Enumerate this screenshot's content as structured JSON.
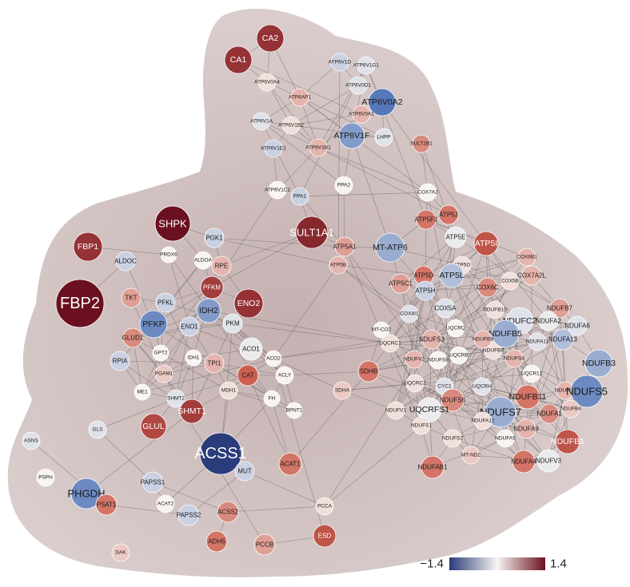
{
  "colors": {
    "background_blob": "#d9cccc",
    "edge": "#555555",
    "scale_low": "#2a3c7a",
    "scale_mid": "#f7f4f2",
    "scale_high": "#6b1020"
  },
  "color_scale": {
    "min_label": "−1.4",
    "max_label": "1.4",
    "min": -1.4,
    "max": 1.4
  },
  "nodes": [
    {
      "id": "CA2",
      "v": 1.1
    },
    {
      "id": "CA1",
      "v": 1.1
    },
    {
      "id": "ATP6V1D",
      "v": -0.2
    },
    {
      "id": "ATP6V1G1",
      "v": -0.1
    },
    {
      "id": "ATP6V0A4",
      "v": 0.1
    },
    {
      "id": "ATP6V0D1",
      "v": -0.1
    },
    {
      "id": "ATP6V0A2",
      "v": -0.7
    },
    {
      "id": "ATP6AP1",
      "v": 0.3
    },
    {
      "id": "ATP6V0A1",
      "v": 0.3
    },
    {
      "id": "ATP6V1A",
      "v": -0.1
    },
    {
      "id": "ATP6V1B2",
      "v": 0.1
    },
    {
      "id": "ATP6V1F",
      "v": -0.5
    },
    {
      "id": "LHPP",
      "v": -0.1
    },
    {
      "id": "ATP6V1E1",
      "v": -0.2
    },
    {
      "id": "ATP6V1B1",
      "v": 0.3
    },
    {
      "id": "SULT2B1",
      "v": 0.5
    },
    {
      "id": "ATP6V1C1",
      "v": 0.0
    },
    {
      "id": "PPA1",
      "v": -0.2
    },
    {
      "id": "PPA2",
      "v": 0.0
    },
    {
      "id": "COX7A2",
      "v": 0.0
    },
    {
      "id": "SHPK",
      "v": 1.4
    },
    {
      "id": "FBP1",
      "v": 1.1
    },
    {
      "id": "FBP2",
      "v": 1.4
    },
    {
      "id": "SULT1A1",
      "v": 1.2
    },
    {
      "id": "PGK1",
      "v": -0.2
    },
    {
      "id": "ALDOC",
      "v": -0.2
    },
    {
      "id": "PRDX6",
      "v": 0.0
    },
    {
      "id": "ALDOA",
      "v": 0.0
    },
    {
      "id": "RPE",
      "v": 0.3
    },
    {
      "id": "PFKM",
      "v": 1.0
    },
    {
      "id": "TKT",
      "v": 0.4
    },
    {
      "id": "PFKL",
      "v": -0.2
    },
    {
      "id": "IDH2",
      "v": -0.5
    },
    {
      "id": "ENO2",
      "v": 1.1
    },
    {
      "id": "PFKP",
      "v": -0.6
    },
    {
      "id": "ENO1",
      "v": -0.2
    },
    {
      "id": "PKM",
      "v": -0.1
    },
    {
      "id": "GLUD1",
      "v": 0.5
    },
    {
      "id": "ACO1",
      "v": -0.05
    },
    {
      "id": "GPT2",
      "v": 0.0
    },
    {
      "id": "IDH1",
      "v": 0.0
    },
    {
      "id": "TPI1",
      "v": 0.3
    },
    {
      "id": "ACO2",
      "v": 0.0
    },
    {
      "id": "RPIA",
      "v": -0.2
    },
    {
      "id": "PGAM1",
      "v": 0.2
    },
    {
      "id": "CAT",
      "v": 0.7
    },
    {
      "id": "ACLY",
      "v": 0.0
    },
    {
      "id": "ME1",
      "v": 0.0
    },
    {
      "id": "MDH1",
      "v": 0.1
    },
    {
      "id": "FH",
      "v": 0.0
    },
    {
      "id": "SHMT2",
      "v": -0.1
    },
    {
      "id": "SHMT1",
      "v": 1.0
    },
    {
      "id": "GLUL",
      "v": 0.9
    },
    {
      "id": "GLS",
      "v": -0.1
    },
    {
      "id": "BPNT1",
      "v": 0.0
    },
    {
      "id": "ASNS",
      "v": -0.1
    },
    {
      "id": "ACSS1",
      "v": -1.4
    },
    {
      "id": "MUT",
      "v": -0.2
    },
    {
      "id": "ACAT1",
      "v": 0.6
    },
    {
      "id": "PSPH",
      "v": 0.0
    },
    {
      "id": "PHGDH",
      "v": -0.6
    },
    {
      "id": "PAPSS1",
      "v": -0.2
    },
    {
      "id": "PSAT1",
      "v": 0.6
    },
    {
      "id": "ACAT2",
      "v": 0.0
    },
    {
      "id": "PAPSS2",
      "v": -0.2
    },
    {
      "id": "ACSS2",
      "v": 0.5
    },
    {
      "id": "PCCA",
      "v": 0.1
    },
    {
      "id": "ADH5",
      "v": 0.6
    },
    {
      "id": "PCCB",
      "v": 0.4
    },
    {
      "id": "ESD",
      "v": 0.8
    },
    {
      "id": "DAK",
      "v": 0.2
    },
    {
      "id": "ATP5J",
      "v": 0.6
    },
    {
      "id": "ATP5F1",
      "v": 0.6
    },
    {
      "id": "ATP5E",
      "v": -0.05
    },
    {
      "id": "ATP5I",
      "v": 0.8
    },
    {
      "id": "MT-ATP6",
      "v": -0.4
    },
    {
      "id": "ATP5A1",
      "v": 0.4
    },
    {
      "id": "ATP5B",
      "v": 0.3
    },
    {
      "id": "ATP5O",
      "v": 0.1
    },
    {
      "id": "ATP5L",
      "v": -0.3
    },
    {
      "id": "COX6B1",
      "v": 0.3
    },
    {
      "id": "ATP5D",
      "v": 0.6
    },
    {
      "id": "ATP5C1",
      "v": 0.4
    },
    {
      "id": "ATP5H",
      "v": -0.2
    },
    {
      "id": "COX7A2L",
      "v": 0.3
    },
    {
      "id": "COX5B",
      "v": 0.1
    },
    {
      "id": "COX6C",
      "v": 0.5
    },
    {
      "id": "COX4I1",
      "v": -0.1
    },
    {
      "id": "COX5A",
      "v": -0.1
    },
    {
      "id": "NDUFB10",
      "v": 0.1
    },
    {
      "id": "NDUFB8",
      "v": 0.1
    },
    {
      "id": "NDUFB7",
      "v": 0.4
    },
    {
      "id": "NDUFC2",
      "v": -0.1
    },
    {
      "id": "NDUFA2",
      "v": -0.05
    },
    {
      "id": "NDUFA6",
      "v": -0.1
    },
    {
      "id": "MT-CO2",
      "v": 0.0
    },
    {
      "id": "UQCRQ",
      "v": 0.0
    },
    {
      "id": "NDUFB5",
      "v": -0.4
    },
    {
      "id": "NDUFA13",
      "v": -0.3
    },
    {
      "id": "NDUFS3",
      "v": 0.3
    },
    {
      "id": "NDUFB9",
      "v": 0.3
    },
    {
      "id": "NDUFA11",
      "v": -0.1
    },
    {
      "id": "NDUFB3",
      "v": -0.4
    },
    {
      "id": "UQCRC1",
      "v": 0.1
    },
    {
      "id": "SDHB",
      "v": 0.6
    },
    {
      "id": "NDUFV2",
      "v": 0.3
    },
    {
      "id": "NDUFS8",
      "v": 0.0
    },
    {
      "id": "UQCRB",
      "v": 0.0
    },
    {
      "id": "NDUFS4",
      "v": 0.3
    },
    {
      "id": "UQCR11",
      "v": 0.0
    },
    {
      "id": "SDHA",
      "v": 0.2
    },
    {
      "id": "UQCRC2",
      "v": 0.1
    },
    {
      "id": "CYC1",
      "v": -0.1
    },
    {
      "id": "UQCRH",
      "v": -0.1
    },
    {
      "id": "NDUFB6",
      "v": 0.3
    },
    {
      "id": "NDUFS5",
      "v": -0.6
    },
    {
      "id": "NDUFS6",
      "v": 0.5
    },
    {
      "id": "NDUFB11",
      "v": 0.6
    },
    {
      "id": "UQCRFS1",
      "v": -0.05
    },
    {
      "id": "NDUFB4",
      "v": 0.2
    },
    {
      "id": "NDUFV1",
      "v": 0.1
    },
    {
      "id": "NDUFS7",
      "v": -0.4
    },
    {
      "id": "NDUFA12",
      "v": 0.1
    },
    {
      "id": "NDUFS1",
      "v": 0.1
    },
    {
      "id": "NDUFA1",
      "v": 0.5
    },
    {
      "id": "NDUFA9",
      "v": 0.3
    },
    {
      "id": "NDUFS2",
      "v": 0.1
    },
    {
      "id": "NDUFA5",
      "v": 0.0
    },
    {
      "id": "NDUFB1",
      "v": 0.8
    },
    {
      "id": "MT-ND2",
      "v": 0.2
    },
    {
      "id": "NDUFAB1",
      "v": 0.6
    },
    {
      "id": "NDUFA4",
      "v": 0.6
    },
    {
      "id": "NDUFV3",
      "v": -0.05
    }
  ]
}
